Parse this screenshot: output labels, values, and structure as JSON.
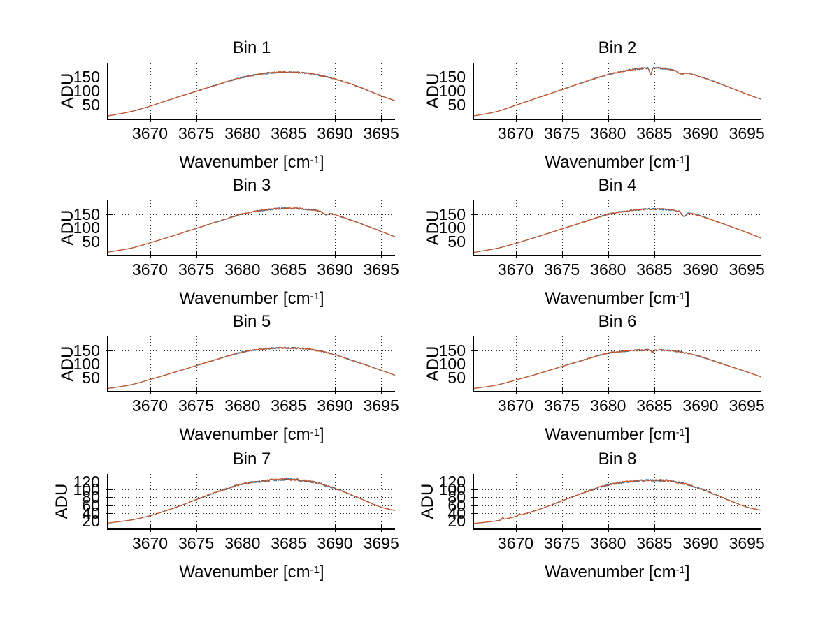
{
  "figure": {
    "background": "#ffffff"
  },
  "axis_labels": {
    "y": "ADU",
    "x_pre": "Wavenumber [cm",
    "x_sup": "-1",
    "x_post": "]"
  },
  "colors": {
    "trace_primary": "#d2521e",
    "trace_secondary": "#0072bd",
    "axis": "#000000",
    "grid_dot": "#2a2a2a",
    "text": "#000000"
  },
  "chart_data": [
    {
      "type": "line",
      "title": "Bin 1",
      "xlabel": "Wavenumber [cm^-1]",
      "ylabel": "ADU",
      "xlim": [
        3665.5,
        3696.5
      ],
      "ylim": [
        0,
        200
      ],
      "xticks": [
        3670,
        3675,
        3680,
        3685,
        3690,
        3695
      ],
      "yticks": [
        50,
        100,
        150
      ],
      "grid": true,
      "legend": false,
      "x": [
        3665.5,
        3668,
        3670,
        3672.5,
        3675,
        3677.5,
        3680,
        3682.5,
        3685,
        3687.5,
        3690,
        3692.5,
        3695,
        3696.5
      ],
      "series": [
        {
          "name": "spectrum-under",
          "color": "#0072bd",
          "values": [
            10,
            26,
            45,
            72,
            98,
            124,
            148,
            162,
            167,
            160,
            142,
            115,
            82,
            64
          ]
        },
        {
          "name": "spectrum-over",
          "color": "#d2521e",
          "values": [
            10,
            26,
            45,
            72,
            98,
            124,
            148,
            162,
            167,
            160,
            142,
            115,
            82,
            64
          ]
        }
      ],
      "features": {
        "dips": [],
        "spikes": []
      }
    },
    {
      "type": "line",
      "title": "Bin 2",
      "xlabel": "Wavenumber [cm^-1]",
      "ylabel": "ADU",
      "xlim": [
        3665.5,
        3696.5
      ],
      "ylim": [
        0,
        200
      ],
      "xticks": [
        3670,
        3675,
        3680,
        3685,
        3690,
        3695
      ],
      "yticks": [
        50,
        100,
        150
      ],
      "grid": true,
      "legend": false,
      "x": [
        3665.5,
        3668,
        3670,
        3672.5,
        3675,
        3677.5,
        3680,
        3682.5,
        3685,
        3687.5,
        3690,
        3692.5,
        3695,
        3696.5
      ],
      "series": [
        {
          "name": "spectrum-under",
          "color": "#0072bd",
          "values": [
            10,
            26,
            48,
            76,
            104,
            132,
            158,
            175,
            182,
            172,
            150,
            120,
            88,
            70
          ]
        },
        {
          "name": "spectrum-over",
          "color": "#d2521e",
          "values": [
            10,
            26,
            48,
            76,
            104,
            132,
            158,
            175,
            182,
            172,
            150,
            120,
            88,
            70
          ]
        }
      ],
      "features": {
        "dips": [
          {
            "x": 3684.6,
            "depth": 26,
            "width": 0.15
          },
          {
            "x": 3687.9,
            "depth": 9,
            "width": 0.45
          }
        ],
        "spikes": []
      }
    },
    {
      "type": "line",
      "title": "Bin 3",
      "xlabel": "Wavenumber [cm^-1]",
      "ylabel": "ADU",
      "xlim": [
        3665.5,
        3696.5
      ],
      "ylim": [
        0,
        200
      ],
      "xticks": [
        3670,
        3675,
        3680,
        3685,
        3690,
        3695
      ],
      "yticks": [
        50,
        100,
        150
      ],
      "grid": true,
      "legend": false,
      "x": [
        3665.5,
        3668,
        3670,
        3672.5,
        3675,
        3677.5,
        3680,
        3682.5,
        3685,
        3687.5,
        3690,
        3692.5,
        3695,
        3696.5
      ],
      "series": [
        {
          "name": "spectrum-under",
          "color": "#0072bd",
          "values": [
            10,
            25,
            44,
            70,
            97,
            124,
            150,
            165,
            171,
            165,
            147,
            118,
            86,
            66
          ]
        },
        {
          "name": "spectrum-over",
          "color": "#d2521e",
          "values": [
            10,
            25,
            44,
            70,
            97,
            124,
            150,
            165,
            171,
            165,
            147,
            118,
            86,
            66
          ]
        }
      ],
      "features": {
        "dips": [
          {
            "x": 3689.0,
            "depth": 8,
            "width": 0.3
          }
        ],
        "spikes": []
      }
    },
    {
      "type": "line",
      "title": "Bin 4",
      "xlabel": "Wavenumber [cm^-1]",
      "ylabel": "ADU",
      "xlim": [
        3665.5,
        3696.5
      ],
      "ylim": [
        0,
        200
      ],
      "xticks": [
        3670,
        3675,
        3680,
        3685,
        3690,
        3695
      ],
      "yticks": [
        50,
        100,
        150
      ],
      "grid": true,
      "legend": false,
      "x": [
        3665.5,
        3668,
        3670,
        3672.5,
        3675,
        3677.5,
        3680,
        3682.5,
        3685,
        3687.5,
        3690,
        3692.5,
        3695,
        3696.5
      ],
      "series": [
        {
          "name": "spectrum-under",
          "color": "#0072bd",
          "values": [
            9,
            24,
            42,
            68,
            95,
            122,
            149,
            163,
            168,
            162,
            143,
            113,
            82,
            62
          ]
        },
        {
          "name": "spectrum-over",
          "color": "#d2521e",
          "values": [
            9,
            24,
            42,
            68,
            95,
            122,
            149,
            163,
            168,
            162,
            143,
            113,
            82,
            62
          ]
        }
      ],
      "features": {
        "dips": [
          {
            "x": 3688.2,
            "depth": 17,
            "width": 0.35
          }
        ],
        "spikes": []
      }
    },
    {
      "type": "line",
      "title": "Bin 5",
      "xlabel": "Wavenumber [cm^-1]",
      "ylabel": "ADU",
      "xlim": [
        3665.5,
        3696.5
      ],
      "ylim": [
        0,
        200
      ],
      "xticks": [
        3670,
        3675,
        3680,
        3685,
        3690,
        3695
      ],
      "yticks": [
        50,
        100,
        150
      ],
      "grid": true,
      "legend": false,
      "x": [
        3665.5,
        3668,
        3670,
        3672.5,
        3675,
        3677.5,
        3680,
        3682.5,
        3685,
        3687.5,
        3690,
        3692.5,
        3695,
        3696.5
      ],
      "series": [
        {
          "name": "spectrum-under",
          "color": "#0072bd",
          "values": [
            9,
            23,
            42,
            67,
            93,
            119,
            143,
            155,
            158,
            152,
            133,
            105,
            76,
            58
          ]
        },
        {
          "name": "spectrum-over",
          "color": "#d2521e",
          "values": [
            9,
            23,
            42,
            67,
            93,
            119,
            143,
            155,
            158,
            152,
            133,
            105,
            76,
            58
          ]
        }
      ],
      "features": {
        "dips": [],
        "spikes": []
      }
    },
    {
      "type": "line",
      "title": "Bin 6",
      "xlabel": "Wavenumber [cm^-1]",
      "ylabel": "ADU",
      "xlim": [
        3665.5,
        3696.5
      ],
      "ylim": [
        0,
        200
      ],
      "xticks": [
        3670,
        3675,
        3680,
        3685,
        3690,
        3695
      ],
      "yticks": [
        50,
        100,
        150
      ],
      "grid": true,
      "legend": false,
      "x": [
        3665.5,
        3668,
        3670,
        3672.5,
        3675,
        3677.5,
        3680,
        3682.5,
        3685,
        3687.5,
        3690,
        3692.5,
        3695,
        3696.5
      ],
      "series": [
        {
          "name": "spectrum-under",
          "color": "#0072bd",
          "values": [
            9,
            22,
            40,
            64,
            90,
            115,
            139,
            148,
            151,
            145,
            126,
            98,
            70,
            52
          ]
        },
        {
          "name": "spectrum-over",
          "color": "#d2521e",
          "values": [
            9,
            22,
            40,
            64,
            90,
            115,
            139,
            148,
            151,
            145,
            126,
            98,
            70,
            52
          ]
        }
      ],
      "features": {
        "dips": [
          {
            "x": 3684.8,
            "depth": 8,
            "width": 0.2
          }
        ],
        "spikes": []
      }
    },
    {
      "type": "line",
      "title": "Bin 7",
      "xlabel": "Wavenumber [cm^-1]",
      "ylabel": "ADU",
      "xlim": [
        3665.5,
        3696.5
      ],
      "ylim": [
        0,
        140
      ],
      "xticks": [
        3670,
        3675,
        3680,
        3685,
        3690,
        3695
      ],
      "yticks": [
        20,
        40,
        60,
        80,
        100,
        120
      ],
      "grid": true,
      "legend": false,
      "x": [
        3665.5,
        3668,
        3670,
        3672.5,
        3675,
        3677.5,
        3680,
        3682.5,
        3685,
        3687.5,
        3690,
        3692.5,
        3695,
        3696.5
      ],
      "series": [
        {
          "name": "spectrum-under",
          "color": "#0072bd",
          "values": [
            14,
            22,
            33,
            52,
            74,
            96,
            114,
            123,
            126,
            120,
            103,
            79,
            55,
            46
          ]
        },
        {
          "name": "spectrum-over",
          "color": "#d2521e",
          "values": [
            14,
            22,
            33,
            52,
            74,
            96,
            114,
            123,
            126,
            120,
            103,
            79,
            55,
            46
          ]
        }
      ],
      "features": {
        "dips": [],
        "spikes": []
      }
    },
    {
      "type": "line",
      "title": "Bin 8",
      "xlabel": "Wavenumber [cm^-1]",
      "ylabel": "ADU",
      "xlim": [
        3665.5,
        3696.5
      ],
      "ylim": [
        0,
        140
      ],
      "xticks": [
        3670,
        3675,
        3680,
        3685,
        3690,
        3695
      ],
      "yticks": [
        20,
        40,
        60,
        80,
        100,
        120
      ],
      "grid": true,
      "legend": false,
      "x": [
        3665.5,
        3668,
        3670,
        3672.5,
        3675,
        3677.5,
        3680,
        3682.5,
        3685,
        3687.5,
        3690,
        3692.5,
        3695,
        3696.5
      ],
      "series": [
        {
          "name": "spectrum-under",
          "color": "#0072bd",
          "values": [
            13,
            20,
            31,
            49,
            71,
            93,
            112,
            121,
            124,
            119,
            102,
            78,
            55,
            47
          ]
        },
        {
          "name": "spectrum-over",
          "color": "#d2521e",
          "values": [
            13,
            20,
            31,
            49,
            71,
            93,
            112,
            121,
            124,
            119,
            102,
            78,
            55,
            47
          ]
        }
      ],
      "features": {
        "dips": [],
        "spikes": [
          {
            "x": 3668.6,
            "height": 7,
            "width": 0.1
          },
          {
            "x": 3670.4,
            "height": 5,
            "width": 0.1
          }
        ]
      }
    }
  ]
}
